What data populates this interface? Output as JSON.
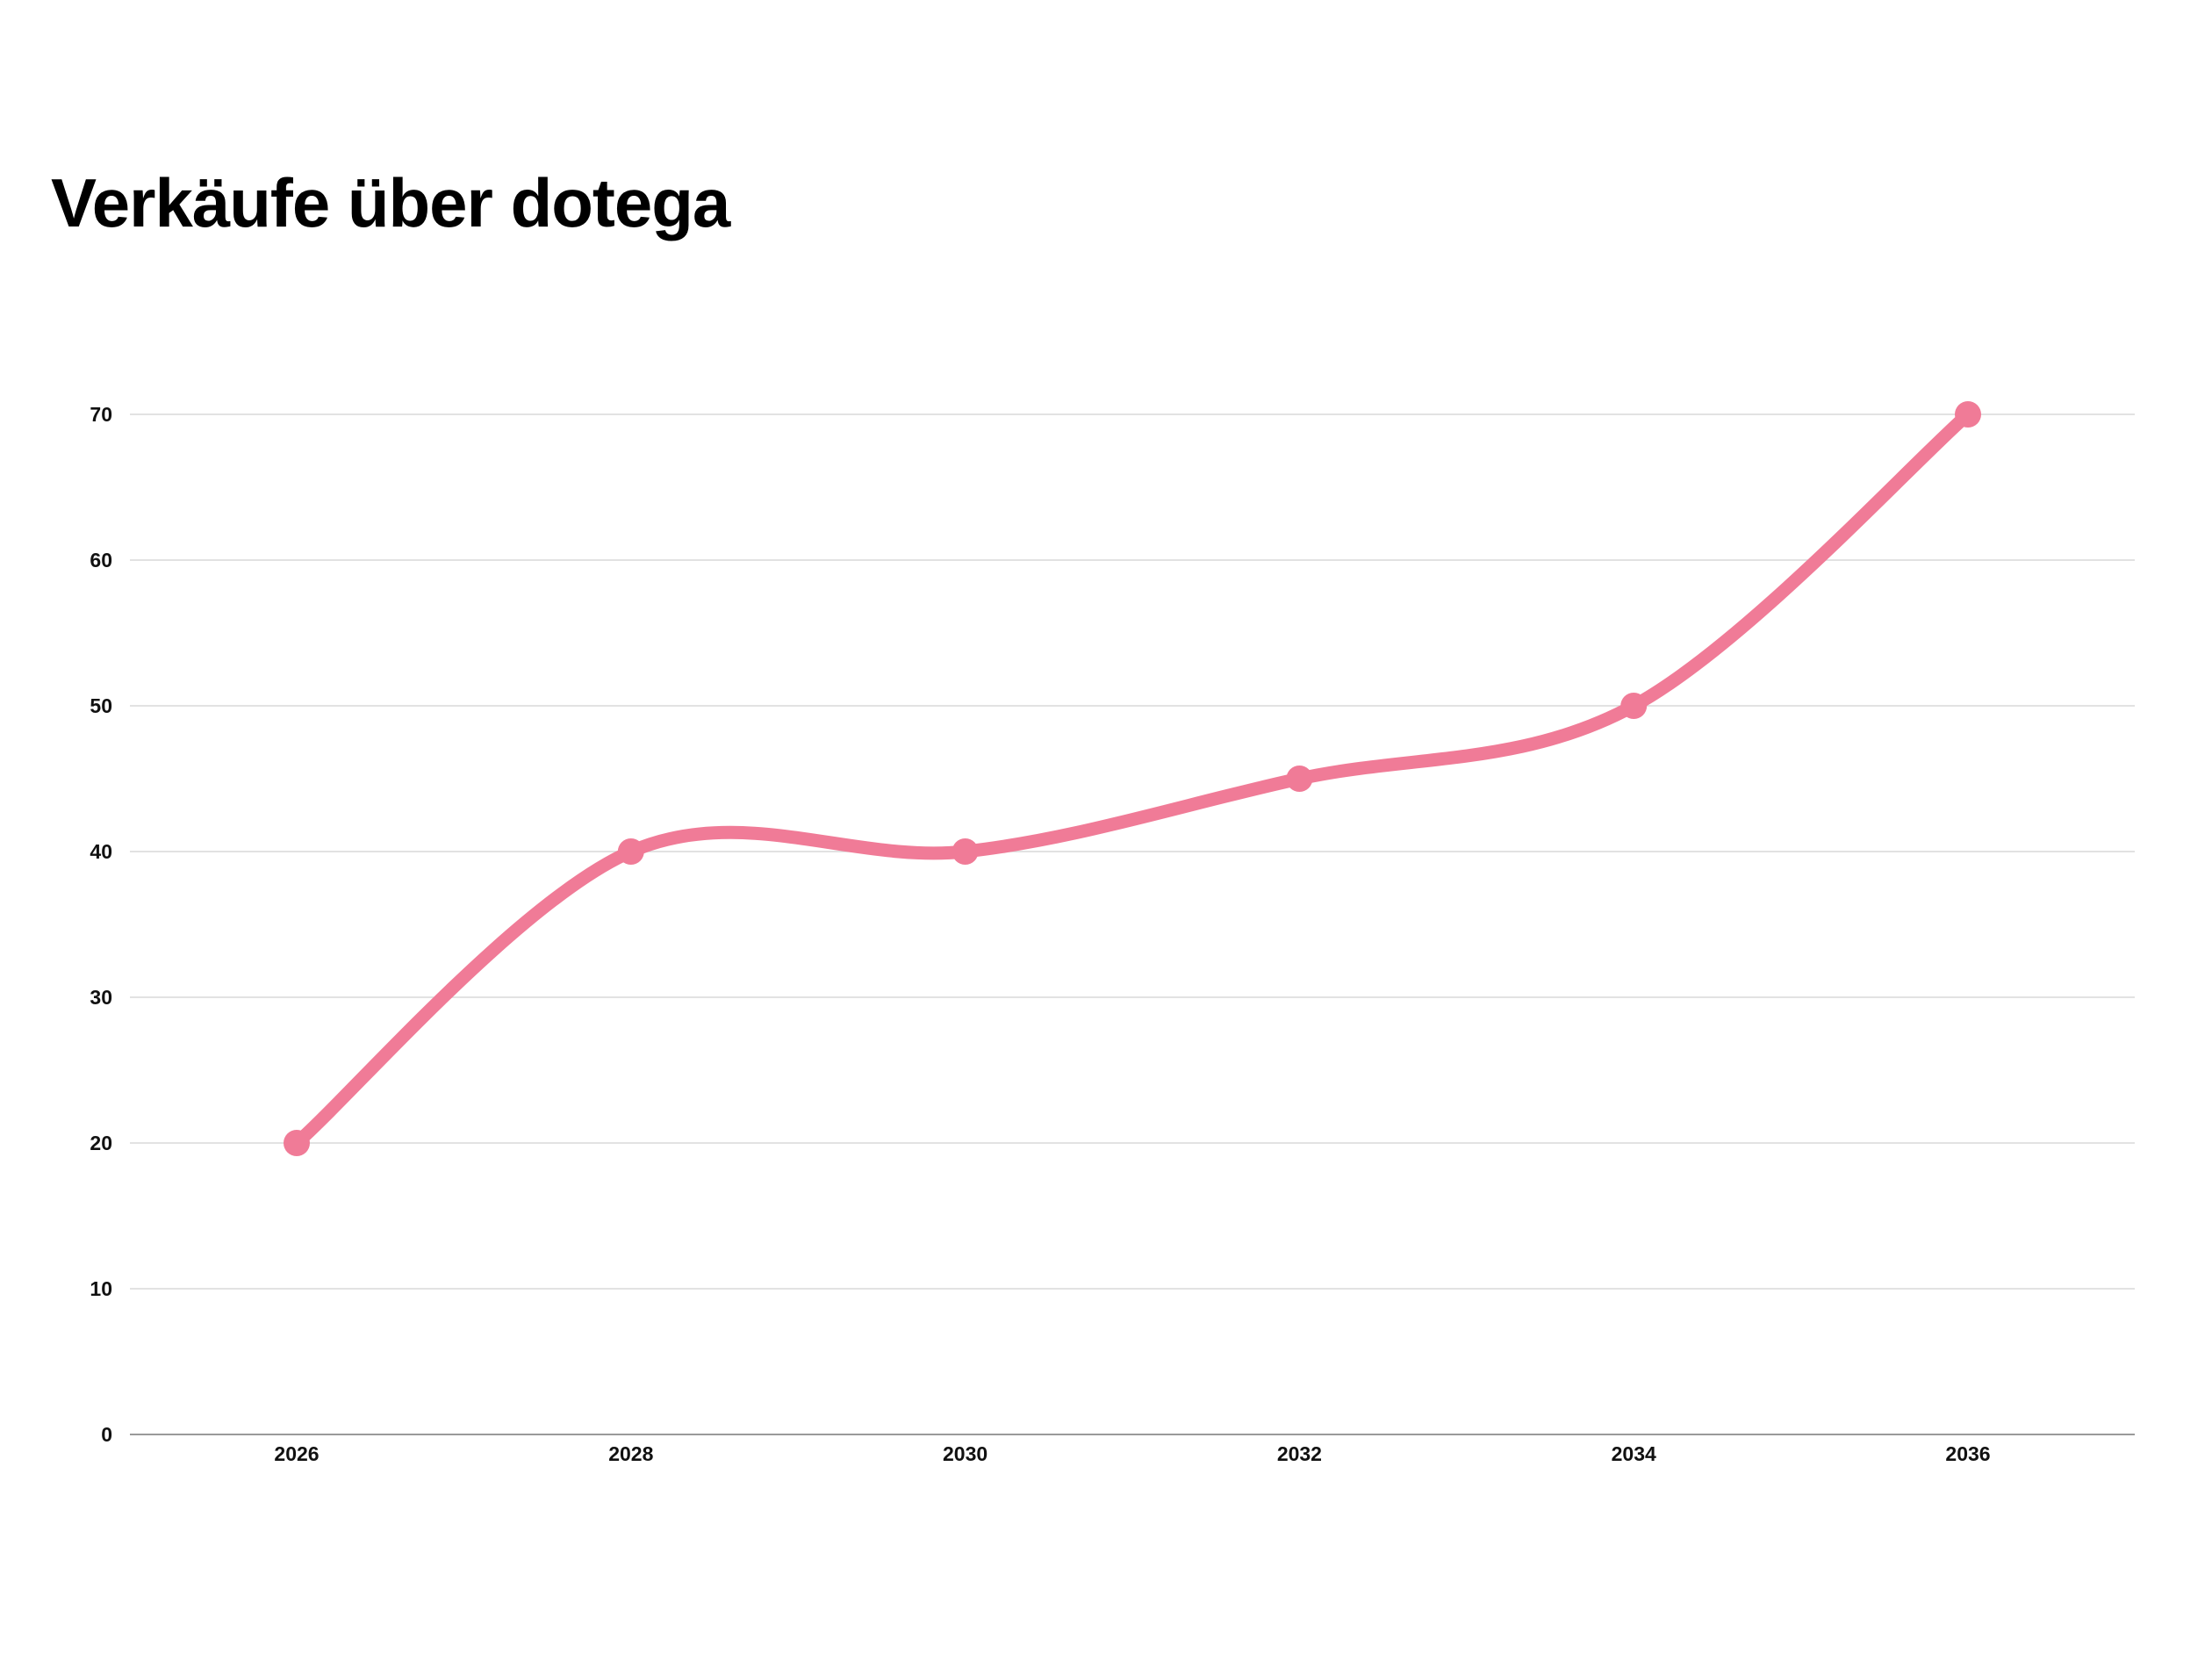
{
  "chart_data": {
    "type": "line",
    "title": "Verkäufe über dotega",
    "xlabel": "",
    "ylabel": "",
    "categories": [
      "2026",
      "2028",
      "2030",
      "2032",
      "2034",
      "2036"
    ],
    "series": [
      {
        "name": "Verkäufe",
        "values": [
          20,
          40,
          40,
          45,
          50,
          70
        ]
      }
    ],
    "y_ticks": [
      0,
      10,
      20,
      30,
      40,
      50,
      60,
      70
    ],
    "ylim": [
      0,
      70
    ],
    "grid": true,
    "smooth": true,
    "legend": "none",
    "colors": {
      "line": "#f07b97",
      "grid": "#d9d9d9",
      "axis": "#9a9a9a",
      "text": "#111111"
    }
  }
}
